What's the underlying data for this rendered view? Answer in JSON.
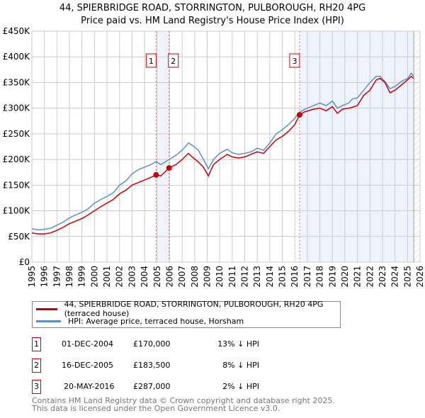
{
  "title": "44, SPIERBRIDGE ROAD, STORRINGTON, PULBOROUGH, RH20 4PG",
  "subtitle": "Price paid vs. HM Land Registry's House Price Index (HPI)",
  "chart_data": {
    "type": "line",
    "title": "44, SPIERBRIDGE ROAD, STORRINGTON, PULBOROUGH, RH20 4PG",
    "subtitle": "Price paid vs. HM Land Registry's House Price Index (HPI)",
    "xlim": [
      1995,
      2026
    ],
    "ylim": [
      0,
      450000
    ],
    "yticks": [
      {
        "v": 0,
        "label": "£0"
      },
      {
        "v": 50000,
        "label": "£50K"
      },
      {
        "v": 100000,
        "label": "£100K"
      },
      {
        "v": 150000,
        "label": "£150K"
      },
      {
        "v": 200000,
        "label": "£200K"
      },
      {
        "v": 250000,
        "label": "£250K"
      },
      {
        "v": 300000,
        "label": "£300K"
      },
      {
        "v": 350000,
        "label": "£350K"
      },
      {
        "v": 400000,
        "label": "£400K"
      },
      {
        "v": 450000,
        "label": "£450K"
      }
    ],
    "xticks": [
      "1995",
      "1996",
      "1997",
      "1998",
      "1999",
      "2000",
      "2001",
      "2002",
      "2003",
      "2004",
      "2005",
      "2006",
      "2007",
      "2008",
      "2009",
      "2010",
      "2011",
      "2012",
      "2013",
      "2014",
      "2015",
      "2016",
      "2017",
      "2018",
      "2019",
      "2020",
      "2021",
      "2022",
      "2023",
      "2024",
      "2025",
      "2026"
    ],
    "grid": true,
    "series": [
      {
        "name": "44, SPIERBRIDGE ROAD, STORRINGTON, PULBOROUGH, RH20 4PG (terraced house)",
        "color": "#cc0000",
        "x": [
          1995,
          1995.5,
          1996,
          1996.5,
          1997,
          1997.5,
          1998,
          1998.5,
          1999,
          1999.5,
          2000,
          2000.5,
          2001,
          2001.5,
          2002,
          2002.5,
          2003,
          2003.5,
          2004,
          2004.5,
          2004.92,
          2005.3,
          2005.96,
          2006.5,
          2007,
          2007.5,
          2007.8,
          2008.3,
          2008.7,
          2009.1,
          2009.5,
          2010,
          2010.6,
          2011,
          2011.5,
          2012,
          2012.5,
          2013,
          2013.5,
          2014,
          2014.5,
          2015,
          2015.5,
          2016,
          2016.38,
          2016.8,
          2017.5,
          2018,
          2018.5,
          2019,
          2019.4,
          2019.8,
          2020.3,
          2020.6,
          2021,
          2021.5,
          2022,
          2022.5,
          2022.8,
          2023.2,
          2023.6,
          2024,
          2024.5,
          2025,
          2025.3,
          2025.5
        ],
        "y": [
          57000,
          55000,
          55000,
          57000,
          62000,
          68000,
          75000,
          80000,
          85000,
          92000,
          100000,
          108000,
          115000,
          122000,
          133000,
          140000,
          150000,
          155000,
          160000,
          165000,
          170000,
          168000,
          183500,
          190000,
          200000,
          212000,
          205000,
          195000,
          185000,
          168000,
          190000,
          200000,
          210000,
          205000,
          203000,
          205000,
          210000,
          215000,
          212000,
          225000,
          238000,
          245000,
          255000,
          268000,
          287000,
          293000,
          298000,
          300000,
          295000,
          303000,
          290000,
          298000,
          300000,
          302000,
          305000,
          325000,
          335000,
          355000,
          358000,
          350000,
          330000,
          335000,
          345000,
          355000,
          362000,
          358000
        ]
      },
      {
        "name": "HPI: Average price, terraced house, Horsham",
        "color": "#5b8fd0",
        "x": [
          1995,
          1995.5,
          1996,
          1996.5,
          1997,
          1997.5,
          1998,
          1998.5,
          1999,
          1999.5,
          2000,
          2000.5,
          2001,
          2001.5,
          2002,
          2002.5,
          2003,
          2003.5,
          2004,
          2004.5,
          2004.92,
          2005.3,
          2005.96,
          2006.5,
          2007,
          2007.5,
          2007.8,
          2008.3,
          2008.7,
          2009.1,
          2009.5,
          2010,
          2010.6,
          2011,
          2011.5,
          2012,
          2012.5,
          2013,
          2013.5,
          2014,
          2014.5,
          2015,
          2015.5,
          2016,
          2016.38,
          2016.8,
          2017.5,
          2018,
          2018.5,
          2019,
          2019.4,
          2019.8,
          2020.3,
          2020.6,
          2021,
          2021.5,
          2022,
          2022.5,
          2022.8,
          2023.2,
          2023.6,
          2024,
          2024.5,
          2025,
          2025.3,
          2025.5
        ],
        "y": [
          65000,
          63000,
          64000,
          66000,
          72000,
          78000,
          86000,
          92000,
          97000,
          104000,
          115000,
          122000,
          128000,
          135000,
          150000,
          158000,
          172000,
          180000,
          185000,
          190000,
          196000,
          190000,
          200000,
          208000,
          218000,
          232000,
          228000,
          218000,
          200000,
          182000,
          200000,
          212000,
          220000,
          213000,
          210000,
          212000,
          215000,
          222000,
          218000,
          232000,
          250000,
          258000,
          268000,
          280000,
          292000,
          298000,
          305000,
          310000,
          305000,
          314000,
          300000,
          305000,
          310000,
          318000,
          320000,
          335000,
          350000,
          362000,
          362000,
          352000,
          338000,
          342000,
          352000,
          358000,
          368000,
          362000
        ]
      }
    ],
    "sales": [
      {
        "n": "1",
        "x": 2004.92,
        "y": 170000
      },
      {
        "n": "2",
        "x": 2005.96,
        "y": 183500
      },
      {
        "n": "3",
        "x": 2016.38,
        "y": 287000
      }
    ],
    "legend_position": "below"
  },
  "legend": {
    "red": "44, SPIERBRIDGE ROAD, STORRINGTON, PULBOROUGH, RH20 4PG (terraced house)",
    "blue": "HPI: Average price, terraced house, Horsham"
  },
  "transactions": [
    {
      "n": "1",
      "date": "01-DEC-2004",
      "price": "£170,000",
      "hpi": "13% ↓ HPI"
    },
    {
      "n": "2",
      "date": "16-DEC-2005",
      "price": "£183,500",
      "hpi": "8% ↓ HPI"
    },
    {
      "n": "3",
      "date": "20-MAY-2016",
      "price": "£287,000",
      "hpi": "2% ↓ HPI"
    }
  ],
  "footer": {
    "line1": "Contains HM Land Registry data © Crown copyright and database right 2025.",
    "line2": "This data is licensed under the Open Government Licence v3.0."
  }
}
